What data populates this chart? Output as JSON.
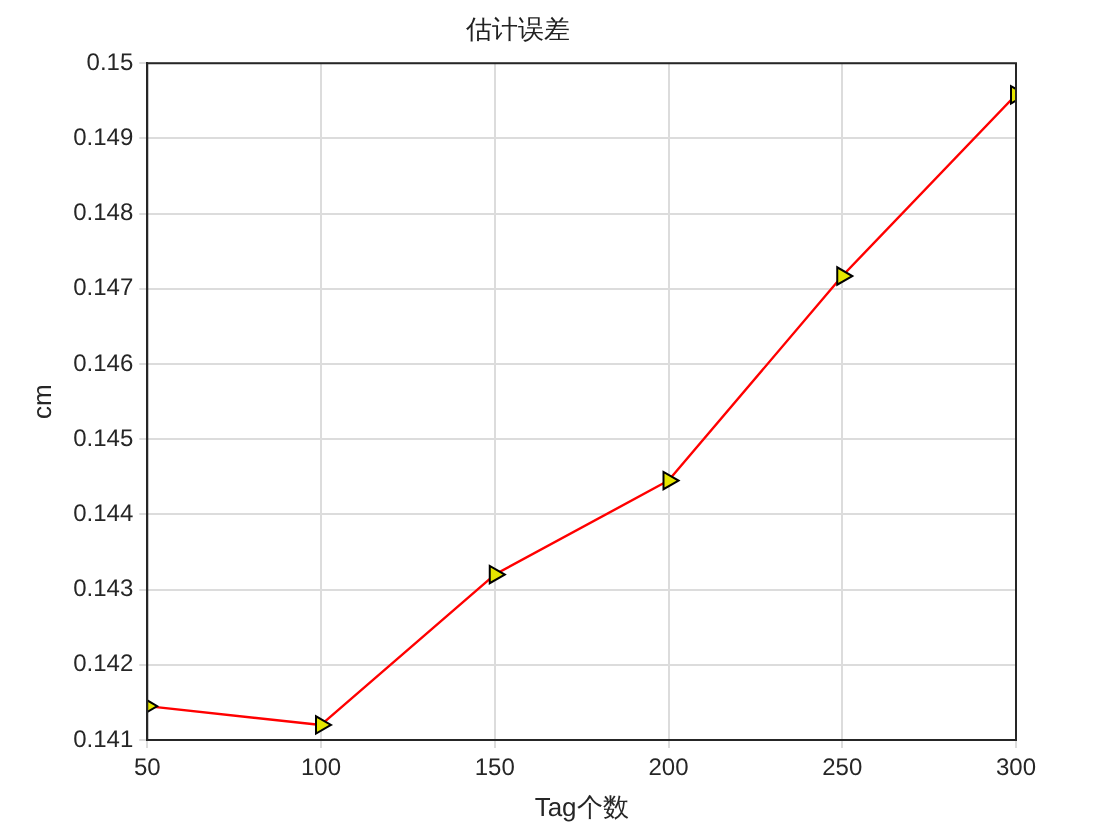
{
  "chart_data": {
    "type": "line",
    "title": "估计误差",
    "xlabel": "Tag个数",
    "ylabel": "cm",
    "x": [
      50,
      100,
      150,
      200,
      250,
      300
    ],
    "series": [
      {
        "color": "#ff0000",
        "values": [
          0.14145,
          0.1412,
          0.1432,
          0.14445,
          0.14717,
          0.14958
        ]
      }
    ],
    "xlim": [
      50,
      300
    ],
    "xticks": [
      50,
      100,
      150,
      200,
      250,
      300
    ],
    "ylim": [
      0.141,
      0.15
    ],
    "yticks": [
      0.141,
      0.142,
      0.143,
      0.144,
      0.145,
      0.146,
      0.147,
      0.148,
      0.149,
      0.15
    ],
    "grid": true,
    "legend": false,
    "marker": "triangle",
    "line_style": "solid"
  }
}
